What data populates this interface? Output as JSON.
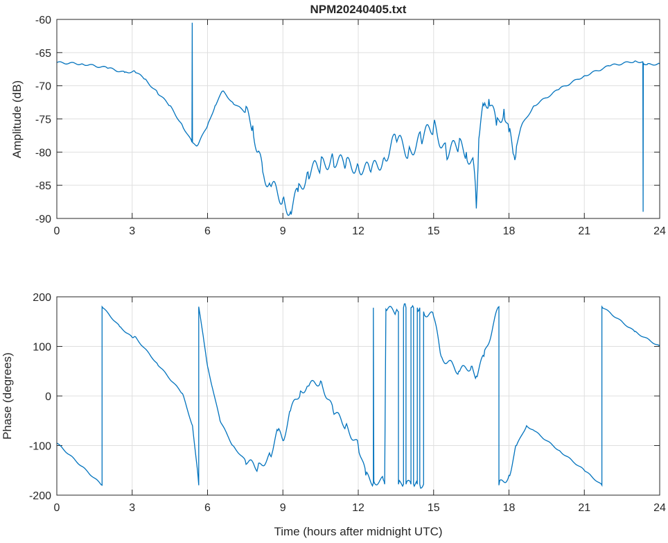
{
  "chart_data": [
    {
      "type": "line",
      "title": "NPM20240405.txt",
      "xlabel": "",
      "ylabel": "Amplitude (dB)",
      "xlim": [
        0,
        24
      ],
      "ylim": [
        -90,
        -60
      ],
      "grid": true,
      "xticks": [
        0,
        3,
        6,
        9,
        12,
        15,
        18,
        21,
        24
      ],
      "yticks": [
        -60,
        -65,
        -70,
        -75,
        -80,
        -85,
        -90
      ],
      "color": "#0072bd",
      "x": [
        0,
        1,
        2,
        2.7,
        3.1,
        3.5,
        4,
        4.5,
        5,
        5.38,
        5.39,
        5.4,
        5.41,
        5.6,
        6,
        6.3,
        6.6,
        7,
        7.5,
        7.8,
        8,
        8.2,
        8.5,
        9,
        9.3,
        9.6,
        10,
        10.5,
        11,
        11.5,
        12,
        12.5,
        13,
        13.5,
        14,
        14.5,
        15,
        15.5,
        16,
        16.3,
        16.6,
        16.7,
        16.8,
        17,
        17.2,
        17.5,
        17.8,
        18,
        18.2,
        18.5,
        19,
        20,
        21,
        22,
        23,
        23.33,
        23.34,
        23.35,
        23.5,
        24
      ],
      "y": [
        -66.5,
        -66.7,
        -67.3,
        -68,
        -67.8,
        -69,
        -71,
        -73,
        -76,
        -78.5,
        -60.5,
        -78.5,
        -78.6,
        -79,
        -76,
        -73,
        -70.8,
        -72.5,
        -74,
        -76,
        -80,
        -83,
        -85,
        -87,
        -89,
        -86,
        -83,
        -82,
        -81,
        -82,
        -82,
        -83,
        -81,
        -78,
        -80,
        -78,
        -76,
        -80,
        -79,
        -80,
        -82,
        -88.5,
        -78,
        -73,
        -72,
        -76,
        -73.5,
        -77,
        -80.5,
        -76,
        -73,
        -70.5,
        -68.5,
        -67,
        -66.3,
        -66.4,
        -89,
        -66.6,
        -66.8,
        -66.7
      ]
    },
    {
      "type": "line",
      "title": "",
      "xlabel": "Time (hours after midnight UTC)",
      "ylabel": "Phase (degrees)",
      "xlim": [
        0,
        24
      ],
      "ylim": [
        -200,
        200
      ],
      "grid": true,
      "xticks": [
        0,
        3,
        6,
        9,
        12,
        15,
        18,
        21,
        24
      ],
      "yticks": [
        200,
        100,
        0,
        -100,
        -200
      ],
      "color": "#0072bd",
      "x": [
        0,
        1.8,
        1.8,
        2.5,
        3,
        3.1,
        4,
        5,
        5.4,
        5.6,
        5.65,
        5.65,
        6,
        6.5,
        7,
        7.5,
        8,
        8.5,
        8.8,
        9,
        9.3,
        9.7,
        10,
        10.5,
        11,
        11.5,
        12,
        12.3,
        12.6,
        12.6,
        12.62,
        13,
        13.05,
        13.1,
        13.5,
        13.6,
        13.6,
        13.8,
        13.8,
        13.9,
        13.9,
        14.1,
        14.1,
        14.2,
        14.2,
        14.35,
        14.35,
        14.45,
        14.45,
        14.6,
        14.6,
        15,
        15.3,
        16,
        16.5,
        16.7,
        17,
        17.6,
        17.6,
        18,
        18.3,
        18.7,
        19,
        20,
        21,
        21.7,
        21.7,
        23,
        24
      ],
      "y": [
        -95,
        -180,
        180,
        140,
        118,
        120,
        65,
        5,
        -60,
        -150,
        -180,
        180,
        60,
        -50,
        -100,
        -130,
        -145,
        -120,
        -70,
        -90,
        -30,
        10,
        20,
        30,
        -30,
        -60,
        -100,
        -160,
        -175,
        178,
        -172,
        -170,
        -178,
        175,
        170,
        170,
        -178,
        -178,
        178,
        178,
        -178,
        -178,
        178,
        178,
        -178,
        -178,
        178,
        178,
        -178,
        -178,
        170,
        160,
        80,
        50,
        60,
        40,
        80,
        180,
        -180,
        -160,
        -100,
        -60,
        -70,
        -110,
        -150,
        -180,
        180,
        130,
        100
      ]
    }
  ]
}
